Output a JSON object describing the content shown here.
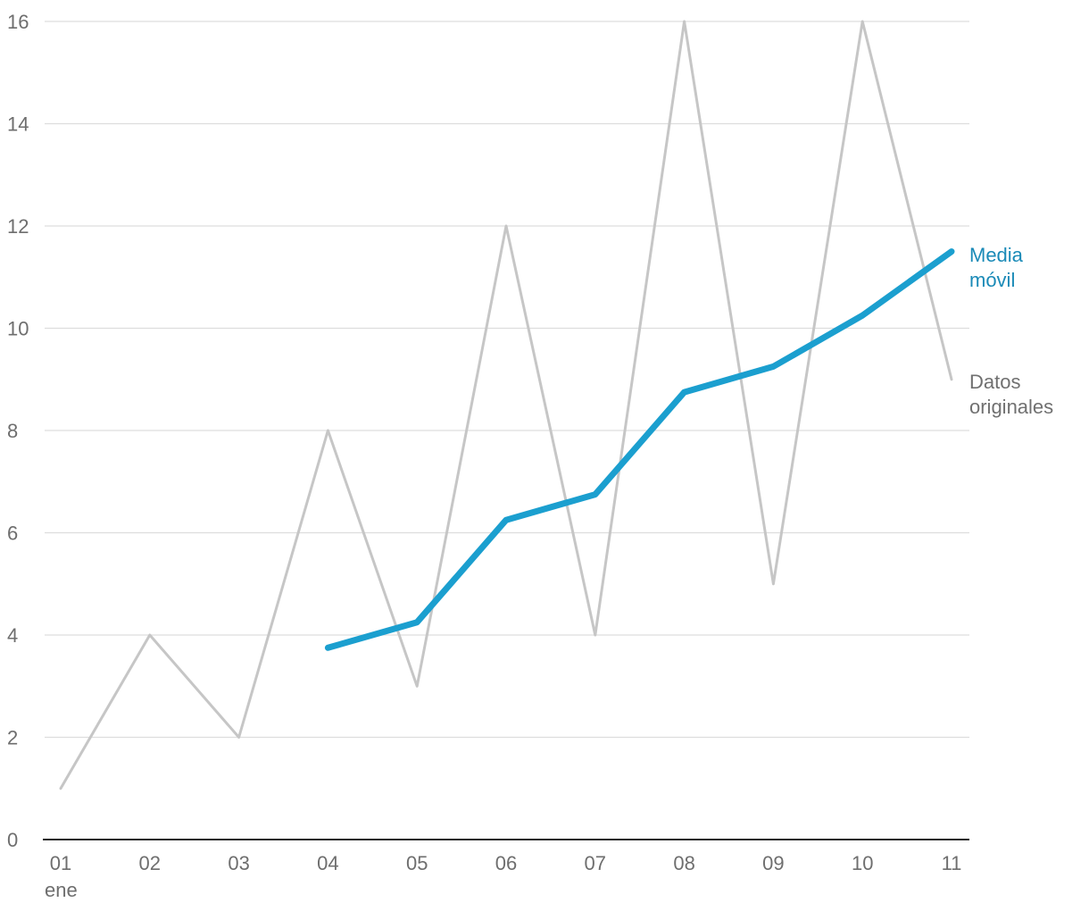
{
  "chart_data": {
    "type": "line",
    "title": "",
    "xlabel": "",
    "ylabel": "",
    "x_ticks": [
      "01",
      "02",
      "03",
      "04",
      "05",
      "06",
      "07",
      "08",
      "09",
      "10",
      "11"
    ],
    "x_tick_sublabel": "ene",
    "ylim": [
      0,
      16
    ],
    "y_ticks": [
      0,
      2,
      4,
      6,
      8,
      10,
      12,
      14,
      16
    ],
    "grid": true,
    "series": [
      {
        "name": "Datos originales",
        "label_lines": [
          "Datos",
          "originales"
        ],
        "color": "#c6c6c6",
        "values": [
          1,
          4,
          2,
          8,
          3,
          12,
          4,
          16,
          5,
          16,
          9
        ]
      },
      {
        "name": "Media móvil",
        "label_lines": [
          "Media",
          "móvil"
        ],
        "color": "#1b9fcf",
        "label_color": "#1a8ab7",
        "values": [
          null,
          null,
          null,
          3.75,
          4.25,
          6.25,
          6.75,
          8.75,
          9.25,
          10.25,
          11.5
        ]
      }
    ]
  }
}
